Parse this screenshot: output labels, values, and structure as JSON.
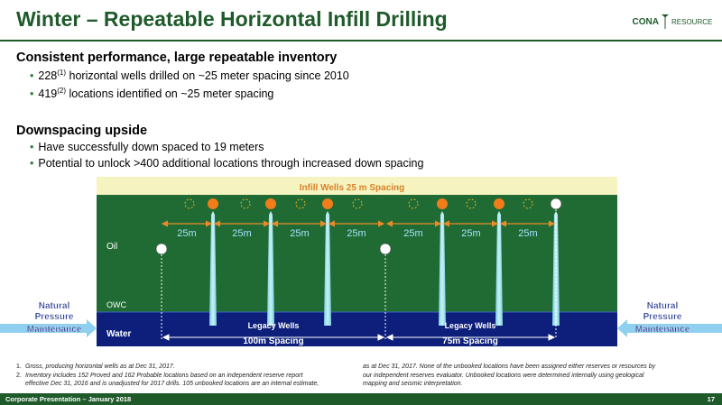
{
  "slide": {
    "title": "Winter – Repeatable Horizontal Infill Drilling"
  },
  "logo": {
    "text_left": "CONA",
    "text_right": "RESOURCES"
  },
  "sections": [
    {
      "heading": "Consistent performance, large repeatable inventory",
      "bullets": [
        {
          "pre": "228",
          "sup": "(1)",
          "post": " horizontal wells drilled on ~25 meter spacing since 2010"
        },
        {
          "pre": "419",
          "sup": "(2)",
          "post": " locations identified on ~25 meter spacing"
        }
      ]
    },
    {
      "heading": "Downspacing upside",
      "bullets": [
        {
          "pre": "Have successfully down spaced to 19 meters",
          "sup": "",
          "post": ""
        },
        {
          "pre": "Potential to unlock >400 additional locations through increased down spacing",
          "sup": "",
          "post": ""
        }
      ]
    }
  ],
  "diagram": {
    "banner": "Infill Wells 25 m Spacing",
    "zone_oil": "Oil",
    "zone_owc": "OWC",
    "zone_water": "Water",
    "spacing_labels": [
      "25m",
      "25m",
      "25m",
      "25m",
      "25m",
      "25m",
      "25m"
    ],
    "left_side_label": [
      "Natural",
      "Pressure",
      "Maintenance"
    ],
    "right_side_label": [
      "Natural",
      "Pressure",
      "Maintenance"
    ],
    "legacy_left": {
      "title": "Legacy Wells",
      "spacing": "100m Spacing"
    },
    "legacy_right": {
      "title": "Legacy Wells",
      "spacing": "75m Spacing"
    },
    "colors": {
      "oil": "#1f6b33",
      "water": "#0d1f7a",
      "banner": "#f5f3c0",
      "infill_well": "#f07d1a",
      "arrow": "#e88a2a"
    }
  },
  "footnotes_left": [
    {
      "num": "1.",
      "text": "Gross, producing horizontal wells as at Dec 31, 2017."
    },
    {
      "num": "2.",
      "text": "Inventory includes 152 Proved and 162 Probable locations based on an independent reserve report"
    },
    {
      "num": "",
      "text": "effective Dec 31, 2016 and is unadjusted for 2017 drills. 105 unbooked locations are an internal estimate,"
    }
  ],
  "footnotes_right": [
    "as at Dec 31, 2017. None of the unbooked locations have been assigned either reserves or resources by",
    "our independent reserves evaluator. Unbooked locations were determined internally using geological",
    "mapping and seismic interpretation."
  ],
  "footer": {
    "left": "Corporate Presentation – January 2018",
    "page": "17"
  }
}
